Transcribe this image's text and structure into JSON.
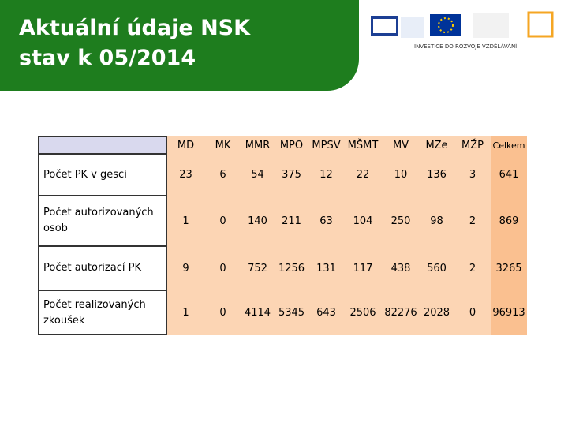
{
  "header": {
    "title_lines": [
      "Aktuální údaje NSK",
      "stav k 05/2014"
    ],
    "logo_caption": "INVESTICE DO ROZVOJE VZDĚLÁVÁNÍ"
  },
  "table": {
    "columns": [
      "MD",
      "MK",
      "MMR",
      "MPO",
      "MPSV",
      "MŠMT",
      "MV",
      "MZe",
      "MŽP",
      "Celkem"
    ],
    "rows": [
      {
        "label": "Počet PK v gesci",
        "values": [
          23,
          6,
          54,
          375,
          12,
          22,
          10,
          136,
          3,
          641
        ]
      },
      {
        "label": "Počet autorizovaných osob",
        "values": [
          1,
          0,
          140,
          211,
          63,
          104,
          250,
          98,
          2,
          869
        ]
      },
      {
        "label": "Počet autorizací PK",
        "values": [
          9,
          0,
          752,
          1256,
          131,
          117,
          438,
          560,
          2,
          3265
        ]
      },
      {
        "label": "Počet realizovaných zkoušek",
        "values": [
          1,
          0,
          4114,
          5345,
          643,
          2506,
          82276,
          2028,
          0,
          96913
        ]
      }
    ]
  }
}
